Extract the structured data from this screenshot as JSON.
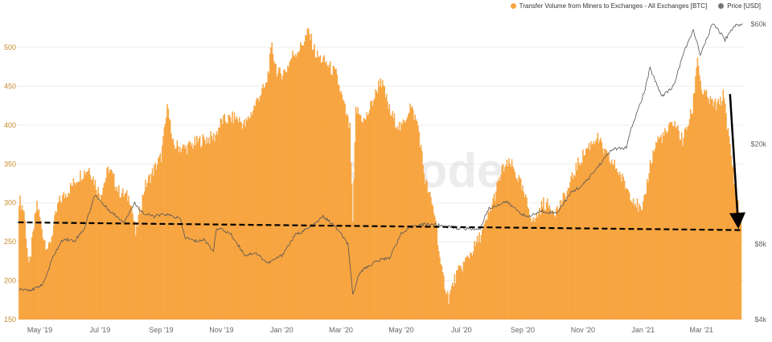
{
  "watermark": "glassnode",
  "colors": {
    "volume": "#F7A541",
    "price": "#555555",
    "left_axis_text": "#C98A2E",
    "right_axis_text": "#666666",
    "grid": "#EEEEEE",
    "annotation": "#000000"
  },
  "chart_data": {
    "type": "bar",
    "title": "",
    "legend_position": "top-right",
    "grid": true,
    "series": [
      {
        "name": "Transfer Volume from Miners to Exchanges - All Exchanges [BTC]",
        "axis": "left",
        "type": "bar",
        "keyframes": [
          [
            "2019-04-10",
            305
          ],
          [
            "2019-04-15",
            290
          ],
          [
            "2019-04-20",
            215
          ],
          [
            "2019-04-28",
            300
          ],
          [
            "2019-05-05",
            255
          ],
          [
            "2019-05-10",
            240
          ],
          [
            "2019-05-20",
            300
          ],
          [
            "2019-06-01",
            320
          ],
          [
            "2019-06-10",
            335
          ],
          [
            "2019-06-20",
            345
          ],
          [
            "2019-07-01",
            310
          ],
          [
            "2019-07-10",
            345
          ],
          [
            "2019-07-20",
            315
          ],
          [
            "2019-08-01",
            305
          ],
          [
            "2019-08-06",
            260
          ],
          [
            "2019-08-15",
            320
          ],
          [
            "2019-09-01",
            360
          ],
          [
            "2019-09-08",
            430
          ],
          [
            "2019-09-12",
            375
          ],
          [
            "2019-09-25",
            370
          ],
          [
            "2019-10-10",
            380
          ],
          [
            "2019-10-25",
            385
          ],
          [
            "2019-11-01",
            405
          ],
          [
            "2019-11-15",
            410
          ],
          [
            "2019-11-25",
            400
          ],
          [
            "2019-12-01",
            415
          ],
          [
            "2019-12-10",
            440
          ],
          [
            "2019-12-16",
            450
          ],
          [
            "2019-12-22",
            500
          ],
          [
            "2019-12-28",
            465
          ],
          [
            "2020-01-05",
            470
          ],
          [
            "2020-01-12",
            490
          ],
          [
            "2020-01-20",
            500
          ],
          [
            "2020-01-28",
            520
          ],
          [
            "2020-02-05",
            490
          ],
          [
            "2020-02-15",
            480
          ],
          [
            "2020-02-25",
            465
          ],
          [
            "2020-03-05",
            420
          ],
          [
            "2020-03-10",
            395
          ],
          [
            "2020-03-13",
            275
          ],
          [
            "2020-03-16",
            420
          ],
          [
            "2020-03-25",
            405
          ],
          [
            "2020-04-05",
            440
          ],
          [
            "2020-04-10",
            460
          ],
          [
            "2020-04-20",
            415
          ],
          [
            "2020-05-01",
            395
          ],
          [
            "2020-05-10",
            425
          ],
          [
            "2020-05-18",
            400
          ],
          [
            "2020-05-25",
            330
          ],
          [
            "2020-06-05",
            280
          ],
          [
            "2020-06-10",
            215
          ],
          [
            "2020-06-18",
            178
          ],
          [
            "2020-06-25",
            205
          ],
          [
            "2020-07-05",
            225
          ],
          [
            "2020-07-15",
            245
          ],
          [
            "2020-07-25",
            270
          ],
          [
            "2020-08-05",
            315
          ],
          [
            "2020-08-12",
            345
          ],
          [
            "2020-08-20",
            350
          ],
          [
            "2020-08-28",
            330
          ],
          [
            "2020-09-05",
            300
          ],
          [
            "2020-09-12",
            275
          ],
          [
            "2020-09-22",
            300
          ],
          [
            "2020-10-05",
            290
          ],
          [
            "2020-10-15",
            310
          ],
          [
            "2020-10-25",
            345
          ],
          [
            "2020-11-05",
            370
          ],
          [
            "2020-11-15",
            385
          ],
          [
            "2020-11-25",
            360
          ],
          [
            "2020-12-05",
            345
          ],
          [
            "2020-12-15",
            320
          ],
          [
            "2020-12-25",
            300
          ],
          [
            "2020-12-31",
            285
          ],
          [
            "2021-01-08",
            350
          ],
          [
            "2021-01-15",
            380
          ],
          [
            "2021-01-25",
            390
          ],
          [
            "2021-02-01",
            405
          ],
          [
            "2021-02-10",
            380
          ],
          [
            "2021-02-20",
            420
          ],
          [
            "2021-02-25",
            490
          ],
          [
            "2021-03-01",
            445
          ],
          [
            "2021-03-10",
            430
          ],
          [
            "2021-03-18",
            425
          ],
          [
            "2021-03-24",
            440
          ],
          [
            "2021-03-28",
            390
          ],
          [
            "2021-04-03",
            330
          ],
          [
            "2021-04-10",
            275
          ]
        ]
      },
      {
        "name": "Price [USD]",
        "axis": "right",
        "type": "line",
        "keyframes": [
          [
            "2019-04-10",
            5300
          ],
          [
            "2019-04-25",
            5250
          ],
          [
            "2019-05-05",
            5600
          ],
          [
            "2019-05-15",
            7200
          ],
          [
            "2019-05-25",
            8400
          ],
          [
            "2019-06-05",
            8200
          ],
          [
            "2019-06-15",
            9200
          ],
          [
            "2019-06-26",
            12600
          ],
          [
            "2019-07-05",
            11400
          ],
          [
            "2019-07-15",
            10500
          ],
          [
            "2019-07-25",
            9800
          ],
          [
            "2019-08-05",
            11600
          ],
          [
            "2019-08-15",
            10500
          ],
          [
            "2019-08-25",
            10300
          ],
          [
            "2019-09-05",
            10500
          ],
          [
            "2019-09-20",
            10100
          ],
          [
            "2019-09-25",
            8500
          ],
          [
            "2019-10-05",
            8200
          ],
          [
            "2019-10-15",
            8300
          ],
          [
            "2019-10-24",
            7500
          ],
          [
            "2019-10-27",
            9300
          ],
          [
            "2019-11-10",
            8800
          ],
          [
            "2019-11-25",
            7200
          ],
          [
            "2019-12-05",
            7400
          ],
          [
            "2019-12-18",
            6700
          ],
          [
            "2020-01-01",
            7200
          ],
          [
            "2020-01-15",
            8700
          ],
          [
            "2020-02-01",
            9400
          ],
          [
            "2020-02-12",
            10300
          ],
          [
            "2020-02-25",
            9300
          ],
          [
            "2020-03-08",
            8000
          ],
          [
            "2020-03-13",
            5000
          ],
          [
            "2020-03-20",
            6200
          ],
          [
            "2020-04-05",
            6800
          ],
          [
            "2020-04-20",
            7100
          ],
          [
            "2020-04-30",
            8700
          ],
          [
            "2020-05-15",
            9500
          ],
          [
            "2020-05-30",
            9600
          ],
          [
            "2020-06-15",
            9400
          ],
          [
            "2020-07-01",
            9200
          ],
          [
            "2020-07-20",
            9200
          ],
          [
            "2020-07-28",
            11000
          ],
          [
            "2020-08-15",
            11800
          ],
          [
            "2020-09-05",
            10200
          ],
          [
            "2020-09-20",
            10800
          ],
          [
            "2020-10-05",
            10600
          ],
          [
            "2020-10-21",
            12900
          ],
          [
            "2020-11-01",
            13700
          ],
          [
            "2020-11-15",
            16000
          ],
          [
            "2020-11-30",
            19000
          ],
          [
            "2020-12-15",
            19300
          ],
          [
            "2020-12-20",
            23000
          ],
          [
            "2021-01-02",
            32000
          ],
          [
            "2021-01-08",
            40000
          ],
          [
            "2021-01-20",
            31000
          ],
          [
            "2021-02-01",
            34000
          ],
          [
            "2021-02-10",
            45000
          ],
          [
            "2021-02-21",
            57000
          ],
          [
            "2021-02-28",
            45000
          ],
          [
            "2021-03-13",
            61000
          ],
          [
            "2021-03-25",
            52000
          ],
          [
            "2021-04-03",
            59000
          ],
          [
            "2021-04-12",
            60000
          ]
        ]
      }
    ],
    "x_axis": {
      "range": [
        "2019-04-07",
        "2021-04-13"
      ],
      "ticks": [
        {
          "date": "2019-05-01",
          "label": "May '19"
        },
        {
          "date": "2019-07-01",
          "label": "Jul '19"
        },
        {
          "date": "2019-09-01",
          "label": "Sep '19"
        },
        {
          "date": "2019-11-01",
          "label": "Nov '19"
        },
        {
          "date": "2020-01-01",
          "label": "Jan '20"
        },
        {
          "date": "2020-03-01",
          "label": "Mar '20"
        },
        {
          "date": "2020-05-01",
          "label": "May '20"
        },
        {
          "date": "2020-07-01",
          "label": "Jul '20"
        },
        {
          "date": "2020-09-01",
          "label": "Sep '20"
        },
        {
          "date": "2020-11-01",
          "label": "Nov '20"
        },
        {
          "date": "2021-01-01",
          "label": "Jan '21"
        },
        {
          "date": "2021-03-01",
          "label": "Mar '21"
        }
      ]
    },
    "y_left": {
      "range": [
        150,
        530
      ],
      "ticks": [
        {
          "value": 150,
          "label": "150"
        },
        {
          "value": 200,
          "label": "200"
        },
        {
          "value": 250,
          "label": "250"
        },
        {
          "value": 300,
          "label": "300"
        },
        {
          "value": 350,
          "label": "350"
        },
        {
          "value": 400,
          "label": "400"
        },
        {
          "value": 450,
          "label": "450"
        },
        {
          "value": 500,
          "label": "500"
        }
      ]
    },
    "y_right": {
      "scale": "log",
      "range": [
        4000,
        60000
      ],
      "ticks": [
        {
          "value": 4000,
          "label": "$4k"
        },
        {
          "value": 8000,
          "label": "$8k"
        },
        {
          "value": 20000,
          "label": "$20k"
        },
        {
          "value": 60000,
          "label": "$60k"
        }
      ]
    },
    "annotations": [
      {
        "type": "dashed-line",
        "from": [
          "2019-04-09",
          275
        ],
        "to": [
          "2021-04-12",
          265
        ]
      },
      {
        "type": "arrow",
        "from": [
          "2021-03-30",
          440
        ],
        "to": [
          "2021-04-07",
          277
        ]
      }
    ]
  }
}
